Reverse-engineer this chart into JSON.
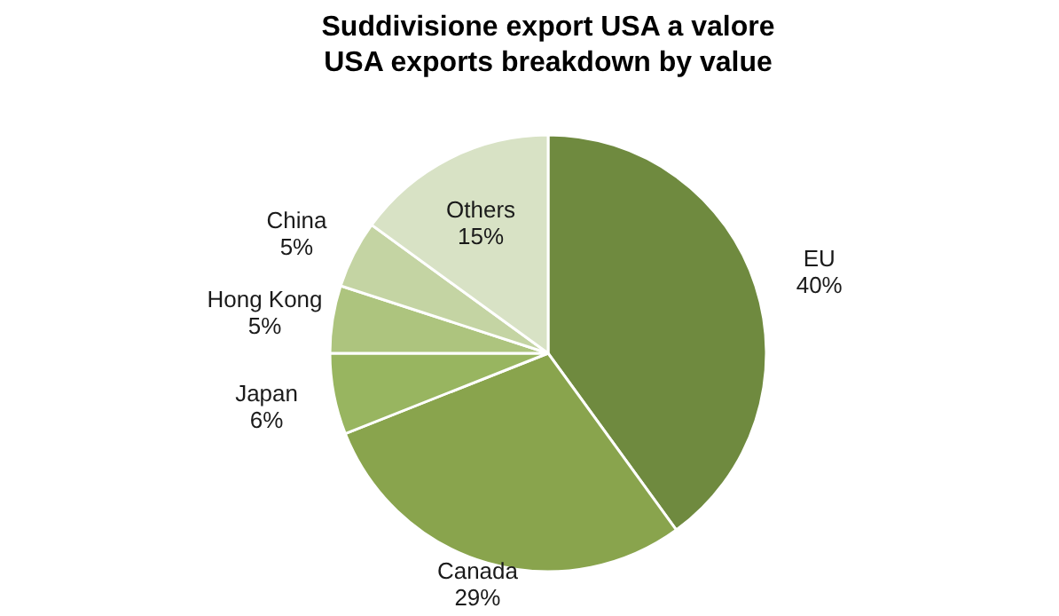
{
  "chart_data": {
    "type": "pie",
    "title": "Suddivisione export USA a valore\nUSA exports breakdown by value",
    "categories": [
      "EU",
      "Canada",
      "Japan",
      "Hong Kong",
      "China",
      "Others"
    ],
    "values": [
      40,
      29,
      6,
      5,
      5,
      15
    ],
    "value_labels": [
      "40%",
      "29%",
      "6%",
      "5%",
      "5%",
      "15%"
    ],
    "colors": [
      "#6f8a3f",
      "#89a44d",
      "#98b560",
      "#adc47e",
      "#c4d4a3",
      "#d8e2c5"
    ]
  }
}
